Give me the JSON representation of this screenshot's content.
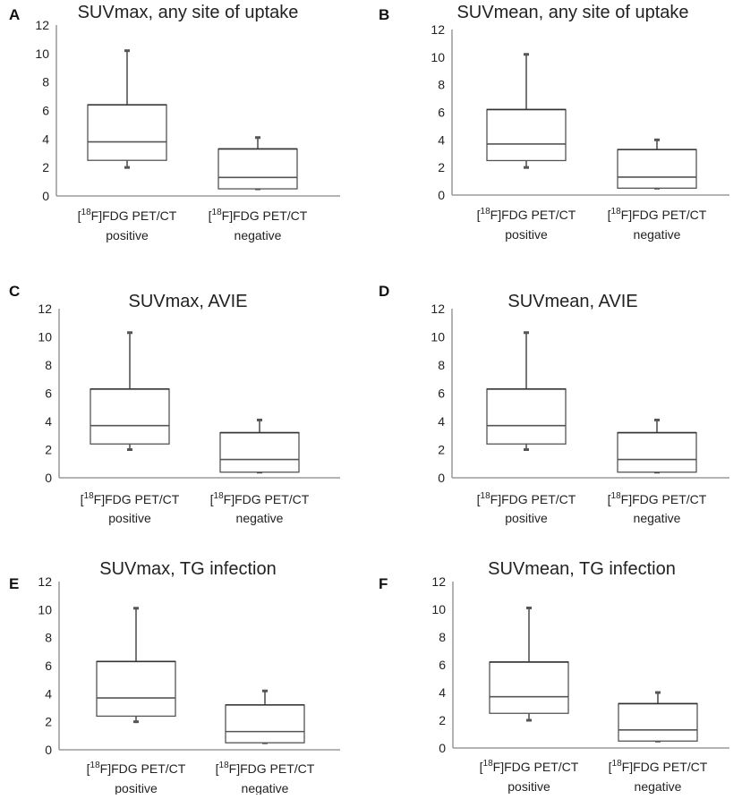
{
  "chart_data": [
    {
      "panel": "A",
      "title": "SUVmax, any site of uptake",
      "type": "box",
      "ylim": [
        0,
        12
      ],
      "yticks": [
        "0",
        "2",
        "4",
        "6",
        "8",
        "10",
        "12"
      ],
      "categories": [
        {
          "sup": "18",
          "line1_after": "F]FDG PET/CT",
          "line2": "positive"
        },
        {
          "sup": "18",
          "line1_after": "F]FDG PET/CT",
          "line2": "negative"
        }
      ],
      "boxes": [
        {
          "min": 2.0,
          "q1": 2.5,
          "median": 3.8,
          "q3": 6.4,
          "max": 10.2
        },
        {
          "min": 0.5,
          "q1": 0.5,
          "median": 1.3,
          "q3": 3.3,
          "max": 4.1
        }
      ]
    },
    {
      "panel": "B",
      "title": "SUVmean, any site of uptake",
      "type": "box",
      "ylim": [
        0,
        12
      ],
      "yticks": [
        "0",
        "2",
        "4",
        "6",
        "8",
        "10",
        "12"
      ],
      "categories": [
        {
          "sup": "18",
          "line1_after": "F]FDG PET/CT",
          "line2": "positive"
        },
        {
          "sup": "18",
          "line1_after": "F]FDG PET/CT",
          "line2": "negative"
        }
      ],
      "boxes": [
        {
          "min": 2.0,
          "q1": 2.5,
          "median": 3.7,
          "q3": 6.2,
          "max": 10.2
        },
        {
          "min": 0.5,
          "q1": 0.5,
          "median": 1.3,
          "q3": 3.3,
          "max": 4.0
        }
      ]
    },
    {
      "panel": "C",
      "title": "SUVmax, AVIE",
      "type": "box",
      "ylim": [
        0,
        12
      ],
      "yticks": [
        "0",
        "2",
        "4",
        "6",
        "8",
        "10",
        "12"
      ],
      "categories": [
        {
          "sup": "18",
          "line1_after": "F]FDG PET/CT",
          "line2": "positive"
        },
        {
          "sup": "18",
          "line1_after": "F]FDG PET/CT",
          "line2": "negative"
        }
      ],
      "boxes": [
        {
          "min": 2.0,
          "q1": 2.4,
          "median": 3.7,
          "q3": 6.3,
          "max": 10.3
        },
        {
          "min": 0.4,
          "q1": 0.4,
          "median": 1.3,
          "q3": 3.2,
          "max": 4.1
        }
      ]
    },
    {
      "panel": "D",
      "title": "SUVmean, AVIE",
      "type": "box",
      "ylim": [
        0,
        12
      ],
      "yticks": [
        "0",
        "2",
        "4",
        "6",
        "8",
        "10",
        "12"
      ],
      "categories": [
        {
          "sup": "18",
          "line1_after": "F]FDG PET/CT",
          "line2": "positive"
        },
        {
          "sup": "18",
          "line1_after": "F]FDG PET/CT",
          "line2": "negative"
        }
      ],
      "boxes": [
        {
          "min": 2.0,
          "q1": 2.4,
          "median": 3.7,
          "q3": 6.3,
          "max": 10.3
        },
        {
          "min": 0.4,
          "q1": 0.4,
          "median": 1.3,
          "q3": 3.2,
          "max": 4.1
        }
      ]
    },
    {
      "panel": "E",
      "title": "SUVmax, TG infection",
      "type": "box",
      "ylim": [
        0,
        12
      ],
      "yticks": [
        "0",
        "2",
        "4",
        "6",
        "8",
        "10",
        "12"
      ],
      "categories": [
        {
          "sup": "18",
          "line1_after": "F]FDG PET/CT",
          "line2": "positive"
        },
        {
          "sup": "18",
          "line1_after": "F]FDG PET/CT",
          "line2": "negative"
        }
      ],
      "boxes": [
        {
          "min": 2.0,
          "q1": 2.4,
          "median": 3.7,
          "q3": 6.3,
          "max": 10.1
        },
        {
          "min": 0.5,
          "q1": 0.5,
          "median": 1.3,
          "q3": 3.2,
          "max": 4.2
        }
      ]
    },
    {
      "panel": "F",
      "title": "SUVmean, TG infection",
      "type": "box",
      "ylim": [
        0,
        12
      ],
      "yticks": [
        "0",
        "2",
        "4",
        "6",
        "8",
        "10",
        "12"
      ],
      "categories": [
        {
          "sup": "18",
          "line1_after": "F]FDG PET/CT",
          "line2": "positive"
        },
        {
          "sup": "18",
          "line1_after": "F]FDG PET/CT",
          "line2": "negative"
        }
      ],
      "boxes": [
        {
          "min": 2.0,
          "q1": 2.5,
          "median": 3.7,
          "q3": 6.2,
          "max": 10.1
        },
        {
          "min": 0.5,
          "q1": 0.5,
          "median": 1.3,
          "q3": 3.2,
          "max": 4.0
        }
      ]
    }
  ]
}
